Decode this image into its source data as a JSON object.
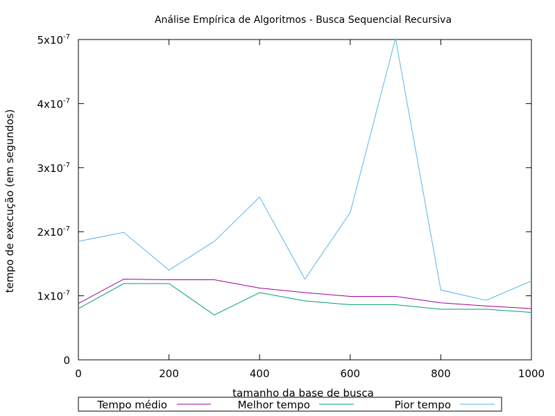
{
  "chart_data": {
    "type": "line",
    "title": "Análise Empírica de Algoritmos - Busca Sequencial Recursiva",
    "xlabel": "tamanho da base de busca",
    "ylabel": "tempo de execução (em segundos)",
    "xlim": [
      0,
      1000
    ],
    "ylim": [
      0,
      5e-07
    ],
    "grid": false,
    "legend_position": "bottom",
    "x": [
      0,
      100,
      200,
      300,
      400,
      500,
      600,
      700,
      800,
      900,
      1000
    ],
    "x_ticks": [
      {
        "value": 0,
        "label": "0"
      },
      {
        "value": 200,
        "label": "200"
      },
      {
        "value": 400,
        "label": "400"
      },
      {
        "value": 600,
        "label": "600"
      },
      {
        "value": 800,
        "label": "800"
      },
      {
        "value": 1000,
        "label": "1000"
      }
    ],
    "y_ticks": [
      {
        "value": 0,
        "mant": "0",
        "exp": ""
      },
      {
        "value": 1e-07,
        "mant": "1x10",
        "exp": "-7"
      },
      {
        "value": 2e-07,
        "mant": "2x10",
        "exp": "-7"
      },
      {
        "value": 3e-07,
        "mant": "3x10",
        "exp": "-7"
      },
      {
        "value": 4e-07,
        "mant": "4x10",
        "exp": "-7"
      },
      {
        "value": 5e-07,
        "mant": "5x10",
        "exp": "-7"
      }
    ],
    "series": [
      {
        "name": "Tempo médio",
        "color": "#990099",
        "values": [
          8.8e-08,
          1.26e-07,
          1.25e-07,
          1.25e-07,
          1.12e-07,
          1.05e-07,
          9.9e-08,
          9.9e-08,
          8.9e-08,
          8.4e-08,
          8e-08
        ]
      },
      {
        "name": "Melhor tempo",
        "color": "#009e73",
        "values": [
          8e-08,
          1.19e-07,
          1.19e-07,
          7e-08,
          1.05e-07,
          9.2e-08,
          8.6e-08,
          8.6e-08,
          7.9e-08,
          7.9e-08,
          7.4e-08
        ]
      },
      {
        "name": "Pior tempo",
        "color": "#56b4e9",
        "values": [
          1.85e-07,
          1.99e-07,
          1.4e-07,
          1.85e-07,
          2.54e-07,
          1.26e-07,
          2.3e-07,
          5.02e-07,
          1.09e-07,
          9.3e-08,
          1.23e-07
        ]
      }
    ]
  }
}
